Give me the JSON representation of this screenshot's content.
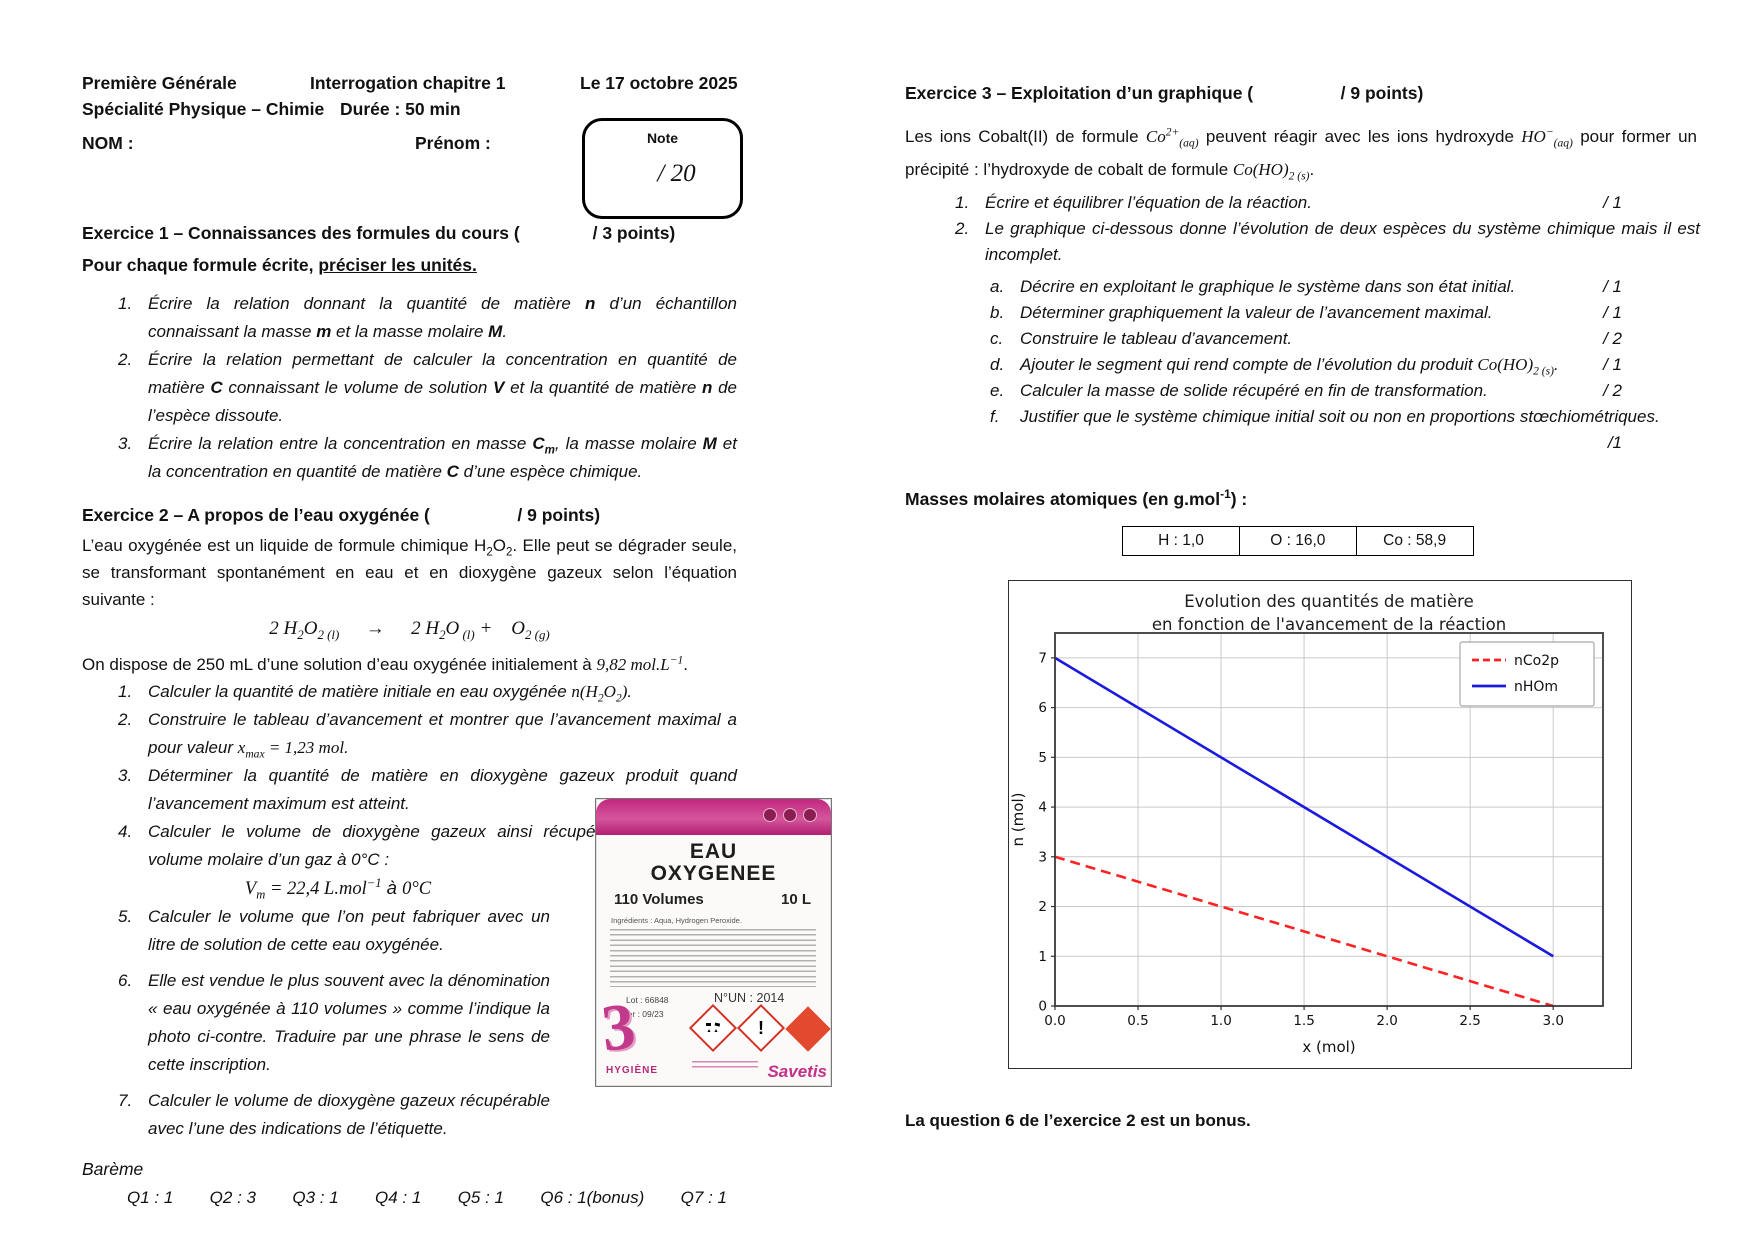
{
  "header": {
    "row1_left": "Première Générale",
    "row1_center": "Interrogation chapitre 1",
    "row1_right": "Le 17 octobre 2025",
    "row2_left": "Spécialité Physique – Chimie",
    "row2_center": "Durée : 50 min",
    "nom": "NOM :",
    "prenom": "Prénom :",
    "note": {
      "label": "Note",
      "score": "/ 20"
    }
  },
  "ex1": {
    "title": "Exercice 1 – Connaissances des formules du cours (               / 3 points)",
    "subtitle_html": "Pour chaque formule écrite, <u>préciser les unités.</u>",
    "items_html": [
      "Écrire la relation donnant la quantité de matière <b>n</b> d’un échantillon connaissant la masse <b>m</b> et la masse molaire <b>M</b>.",
      "Écrire la relation permettant de calculer la concentration en quantité de matière <b>C</b> connaissant le volume de solution <b>V</b> et la quantité de matière <b>n</b> de l’espèce dissoute.",
      "Écrire la relation entre la concentration en masse <b>C<sub>m</sub></b>, la masse molaire <b>M</b> et la concentration en quantité de matière <b>C</b> d’une espèce chimique."
    ],
    "item_numbers": [
      "1.",
      "2.",
      "3."
    ]
  },
  "ex2": {
    "title": "Exercice 2 – A propos de l’eau oxygénée (                  / 9 points)",
    "intro_html": "L’eau oxygénée est un liquide de formule chimique H<sub>2</sub>O<sub>2</sub>. Elle peut se dégrader seule, se transformant spontanément en eau et en dioxygène gazeux selon l’équation suivante :",
    "equation_html": "<span class=\"math\">2 H<sub>2</sub>O<sub>2 (l)</sub></span>&nbsp;&nbsp;&nbsp;&nbsp;&nbsp;→&nbsp;&nbsp;&nbsp;&nbsp;&nbsp;<span class=\"math\">2 H<sub>2</sub>O<sub> (l)</sub> +&nbsp;&nbsp;&nbsp;&nbsp;O<sub>2 (g)</sub></span>",
    "solution_html": "On dispose de 250 mL d’une solution d’eau oxygénée initialement à <span class=\"math\">9,82 mol.L<sup>−1</sup></span>.",
    "item_numbers": [
      "1.",
      "2.",
      "3.",
      "4.",
      "5.",
      "6.",
      "7."
    ],
    "items_html": [
      "Calculer la quantité de matière initiale en eau oxygénée <span class=\"math\">n(H<sub>2</sub>O<sub>2</sub>)</span>.",
      "Construire le tableau d’avancement et montrer que l’avancement maximal a pour valeur <span class=\"math\">x<sub>max</sub> = 1,23 mol</span>.",
      "Déterminer la quantité de matière en dioxygène gazeux produit quand l’avancement maximum est atteint.",
      "Calculer le volume de dioxygène gazeux ainsi récupéré connaissant le volume molaire d’un gaz à 0°C :",
      "Calculer le volume que l’on peut fabriquer avec un litre de solution de cette eau oxygénée.",
      "Elle est vendue le plus souvent avec la dénomination « eau oxygénée à 110 volumes » comme l’indique la photo ci-contre. Traduire par une phrase le sens de cette inscription.",
      "Calculer le volume de dioxygène gazeux récupérable avec l’une des indications de l’étiquette."
    ],
    "vm_formula_html": "<span class=\"math\">V<sub>m</sub> = 22,4 L.mol<sup>−1</sup></span> à <span class=\"math\">0°C</span>",
    "bareme_label": "Barème",
    "bareme_items": [
      "Q1 : 1",
      "Q2 : 3",
      "Q3 : 1",
      "Q4 : 1",
      "Q5 : 1",
      "Q6 : 1(bonus)",
      "Q7 : 1"
    ]
  },
  "photo": {
    "title_line1": "EAU",
    "title_line2": "OXYGENEE",
    "volumes": "110 Volumes",
    "size": "10 L",
    "ingredients": "Ingrédients : Aqua, Hydrogen Peroxide.",
    "lot": "Lot : 66848",
    "per": "Per : 09/23",
    "un": "N°UN : 2014",
    "exclamation": "!",
    "brand_left": "HYGIÈNE",
    "brand_right": "Savetis"
  },
  "ex3": {
    "title": "Exercice 3 – Exploitation d’un graphique (                  / 9 points)",
    "intro_html": "Les ions Cobalt(II) de formule <span class=\"math\">Co<sup>2+</sup><sub>(aq)</sub></span> peuvent réagir avec les ions hydroxyde <span class=\"math\">HO<sup>−</sup><sub>(aq)</sub></span> pour former un précipité : l’hydroxyde de cobalt de formule <span class=\"math\">Co(HO)<sub>2 (s)</sub></span>.",
    "items": [
      {
        "label": "1.",
        "text_html": "Écrire et équilibrer l’équation de la réaction.",
        "mark": "/ 1"
      },
      {
        "label": "2.",
        "text_html": "Le graphique ci-dessous donne l’évolution de deux espèces du système chimique mais il est incomplet.",
        "mark": ""
      }
    ],
    "subitems": [
      {
        "label": "a.",
        "text_html": "Décrire en exploitant le graphique le système dans son état initial.",
        "mark": "/ 1"
      },
      {
        "label": "b.",
        "text_html": "Déterminer graphiquement la valeur de l’avancement maximal.",
        "mark": "/ 1"
      },
      {
        "label": "c.",
        "text_html": "Construire le tableau d’avancement.",
        "mark": "/ 2"
      },
      {
        "label": "d.",
        "text_html": "Ajouter le segment qui rend compte de l’évolution du produit <span class=\"math\">Co(HO)<sub>2 (s)</sub></span>.",
        "mark": "/ 1"
      },
      {
        "label": "e.",
        "text_html": "Calculer la masse de solide récupéré en fin de transformation.",
        "mark": "/ 2"
      },
      {
        "label": "f.",
        "text_html": "Justifier que le système chimique initial soit ou non en proportions stœchiométriques.",
        "mark": ""
      }
    ],
    "f_mark": "/1",
    "masses_title_html": "Masses molaires atomiques (en g.mol<sup>-1</sup>) :",
    "table_cells": [
      "H : 1,0",
      "O : 16,0",
      "Co : 58,9"
    ],
    "bonus_note": "La question 6 de l’exercice 2 est un bonus."
  },
  "chart_data": {
    "type": "line",
    "title_lines": [
      "Evolution des quantités de matière",
      "en fonction de l'avancement de la réaction"
    ],
    "xlabel": "x (mol)",
    "ylabel": "n (mol)",
    "xlim": [
      0,
      3.3
    ],
    "ylim": [
      0,
      7.5
    ],
    "xticks": [
      0.0,
      0.5,
      1.0,
      1.5,
      2.0,
      2.5,
      3.0
    ],
    "yticks": [
      0,
      1,
      2,
      3,
      4,
      5,
      6,
      7
    ],
    "grid": true,
    "legend_position": "top-right",
    "series": [
      {
        "name": "nCo2p",
        "color": "#ff2222",
        "style": "dashed",
        "points": [
          [
            0,
            3
          ],
          [
            3,
            0
          ]
        ]
      },
      {
        "name": "nHOm",
        "color": "#1a1adf",
        "style": "solid",
        "points": [
          [
            0,
            7
          ],
          [
            3,
            1
          ]
        ]
      }
    ]
  }
}
